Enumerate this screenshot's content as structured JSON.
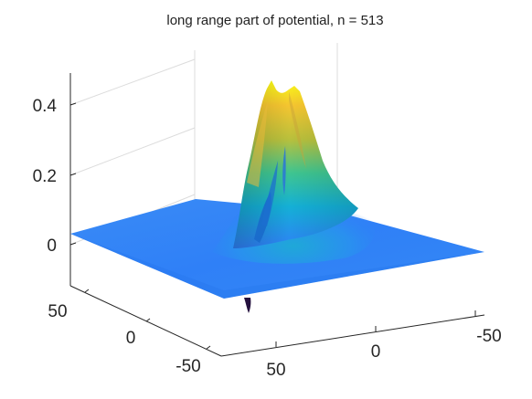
{
  "chart_data": {
    "type": "surface",
    "title": "long range part of  potential, n = 513",
    "xlabel": "",
    "ylabel": "",
    "zlabel": "",
    "x_ticks": [
      "50",
      "0",
      "-50"
    ],
    "y_ticks": [
      "50",
      "0",
      "-50"
    ],
    "z_ticks": [
      "0",
      "0.2",
      "0.4"
    ],
    "xlim": [
      -65,
      65
    ],
    "ylim": [
      -65,
      65
    ],
    "zlim": [
      -0.08,
      0.48
    ],
    "grid": true,
    "colormap": "parula",
    "colormap_stops": [
      "#3e26a8",
      "#2f80f7",
      "#12b2d3",
      "#40c58f",
      "#c2bf39",
      "#fcce2e",
      "#f9fb15"
    ],
    "features": {
      "peak_max": 0.47,
      "peak_secondary": 0.45,
      "base_level": 0.0,
      "sharp_dip_min": -0.07
    }
  }
}
